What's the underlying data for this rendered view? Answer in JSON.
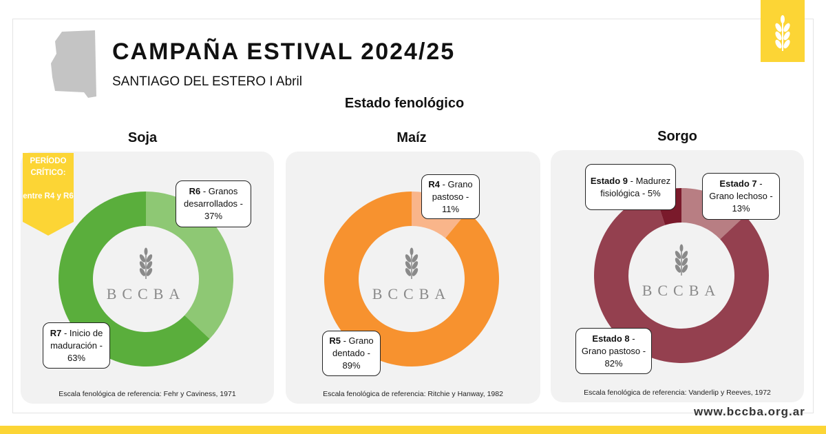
{
  "header": {
    "title": "CAMPAÑA ESTIVAL 2024/25",
    "subtitle": "SANTIAGO DEL ESTERO I Abril",
    "section_title": "Estado fenológico"
  },
  "critical_period": {
    "title": "PERÍODO CRÍTICO:",
    "text": "entre R4 y R6"
  },
  "watermark": "BCCBA",
  "website": "www.bccba.org.ar",
  "chart_data": [
    {
      "type": "pie",
      "title": "Soja",
      "categories": [
        "R6",
        "R7"
      ],
      "descriptions": [
        "- Granos desarrollados -",
        "- Inicio de maduración -"
      ],
      "values": [
        37,
        63
      ],
      "value_labels": [
        "37%",
        "63%"
      ],
      "colors": [
        "#8ec874",
        "#5aae3c"
      ],
      "source": "Escala fenológica de referencia: Fehr y Caviness, 1971"
    },
    {
      "type": "pie",
      "title": "Maíz",
      "categories": [
        "R4",
        "R5"
      ],
      "descriptions": [
        "- Grano pastoso -",
        "- Grano dentado -"
      ],
      "values": [
        11,
        89
      ],
      "value_labels": [
        "11%",
        "89%"
      ],
      "colors": [
        "#f9b58a",
        "#f7922f"
      ],
      "source": "Escala fenológica de referencia: Ritchie y Hanway, 1982"
    },
    {
      "type": "pie",
      "title": "Sorgo",
      "categories": [
        "Estado 7",
        "Estado 8",
        "Estado 9"
      ],
      "descriptions": [
        "- Grano lechoso -",
        "- Grano pastoso -",
        "- Madurez fisiológica -"
      ],
      "values": [
        13,
        82,
        5
      ],
      "value_labels": [
        "13%",
        "82%",
        "5%"
      ],
      "colors": [
        "#b87e83",
        "#94404f",
        "#7a1a2b"
      ],
      "source": "Escala fenológica de referencia: Vanderlip y Reeves, 1972"
    }
  ]
}
